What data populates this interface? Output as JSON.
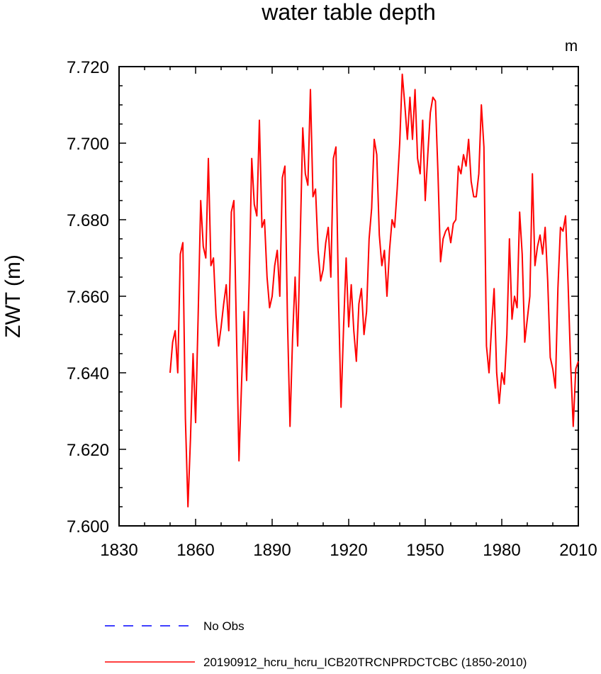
{
  "chart_data": {
    "type": "line",
    "title": "water table depth",
    "ylabel": "ZWT  (m)",
    "xlabel": "",
    "units_label": "m",
    "xlim": [
      1830,
      2010
    ],
    "ylim": [
      7.6,
      7.72
    ],
    "x_ticks": [
      1830,
      1860,
      1890,
      1920,
      1950,
      1980,
      2010
    ],
    "y_ticks": [
      "7.600",
      "7.620",
      "7.640",
      "7.660",
      "7.680",
      "7.700",
      "7.720"
    ],
    "grid": false,
    "legend_position": "bottom",
    "series": [
      {
        "name": "No Obs",
        "color": "#0000ff",
        "dash": "dashed",
        "x": [],
        "values": []
      },
      {
        "name": "20190912_hcru_hcru_ICB20TRCNPRDCTCBC (1850-2010)",
        "color": "#ff0000",
        "dash": "solid",
        "x": [
          1850,
          1851,
          1852,
          1853,
          1854,
          1855,
          1856,
          1857,
          1858,
          1859,
          1860,
          1861,
          1862,
          1863,
          1864,
          1865,
          1866,
          1867,
          1868,
          1869,
          1870,
          1871,
          1872,
          1873,
          1874,
          1875,
          1876,
          1877,
          1878,
          1879,
          1880,
          1881,
          1882,
          1883,
          1884,
          1885,
          1886,
          1887,
          1888,
          1889,
          1890,
          1891,
          1892,
          1893,
          1894,
          1895,
          1896,
          1897,
          1898,
          1899,
          1900,
          1901,
          1902,
          1903,
          1904,
          1905,
          1906,
          1907,
          1908,
          1909,
          1910,
          1911,
          1912,
          1913,
          1914,
          1915,
          1916,
          1917,
          1918,
          1919,
          1920,
          1921,
          1922,
          1923,
          1924,
          1925,
          1926,
          1927,
          1928,
          1929,
          1930,
          1931,
          1932,
          1933,
          1934,
          1935,
          1936,
          1937,
          1938,
          1939,
          1940,
          1941,
          1942,
          1943,
          1944,
          1945,
          1946,
          1947,
          1948,
          1949,
          1950,
          1951,
          1952,
          1953,
          1954,
          1955,
          1956,
          1957,
          1958,
          1959,
          1960,
          1961,
          1962,
          1963,
          1964,
          1965,
          1966,
          1967,
          1968,
          1969,
          1970,
          1971,
          1972,
          1973,
          1974,
          1975,
          1976,
          1977,
          1978,
          1979,
          1980,
          1981,
          1982,
          1983,
          1984,
          1985,
          1986,
          1987,
          1988,
          1989,
          1990,
          1991,
          1992,
          1993,
          1994,
          1995,
          1996,
          1997,
          1998,
          1999,
          2000,
          2001,
          2002,
          2003,
          2004,
          2005,
          2006,
          2007,
          2008,
          2009,
          2010
        ],
        "values": [
          7.64,
          7.648,
          7.651,
          7.64,
          7.671,
          7.674,
          7.628,
          7.605,
          7.623,
          7.645,
          7.627,
          7.655,
          7.685,
          7.673,
          7.67,
          7.696,
          7.668,
          7.67,
          7.655,
          7.647,
          7.652,
          7.658,
          7.663,
          7.651,
          7.682,
          7.685,
          7.651,
          7.617,
          7.637,
          7.656,
          7.638,
          7.664,
          7.696,
          7.684,
          7.681,
          7.706,
          7.678,
          7.68,
          7.665,
          7.657,
          7.66,
          7.668,
          7.672,
          7.66,
          7.691,
          7.694,
          7.654,
          7.626,
          7.649,
          7.665,
          7.647,
          7.675,
          7.704,
          7.692,
          7.689,
          7.714,
          7.686,
          7.688,
          7.672,
          7.664,
          7.667,
          7.674,
          7.678,
          7.665,
          7.696,
          7.699,
          7.66,
          7.631,
          7.652,
          7.67,
          7.652,
          7.663,
          7.651,
          7.643,
          7.658,
          7.662,
          7.65,
          7.656,
          7.675,
          7.683,
          7.701,
          7.697,
          7.676,
          7.668,
          7.672,
          7.66,
          7.672,
          7.68,
          7.678,
          7.688,
          7.7,
          7.718,
          7.71,
          7.701,
          7.712,
          7.701,
          7.714,
          7.696,
          7.692,
          7.706,
          7.685,
          7.697,
          7.708,
          7.712,
          7.711,
          7.692,
          7.669,
          7.675,
          7.677,
          7.678,
          7.674,
          7.679,
          7.68,
          7.694,
          7.692,
          7.697,
          7.694,
          7.701,
          7.69,
          7.686,
          7.686,
          7.692,
          7.71,
          7.699,
          7.647,
          7.64,
          7.652,
          7.662,
          7.64,
          7.632,
          7.64,
          7.637,
          7.65,
          7.675,
          7.654,
          7.66,
          7.657,
          7.682,
          7.671,
          7.648,
          7.654,
          7.66,
          7.692,
          7.668,
          7.673,
          7.676,
          7.671,
          7.678,
          7.664,
          7.644,
          7.641,
          7.636,
          7.662,
          7.678,
          7.677,
          7.681,
          7.663,
          7.642,
          7.626,
          7.641,
          7.643
        ]
      }
    ]
  }
}
